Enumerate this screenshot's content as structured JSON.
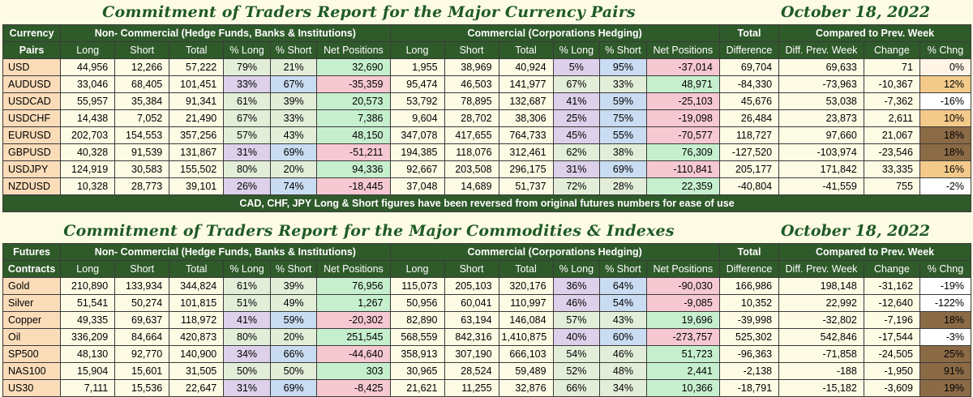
{
  "currency": {
    "title": "Commitment of Traders Report for the Major Currency Pairs",
    "date": "October 18, 2022",
    "headers": {
      "label_top": "Currency",
      "label_bottom": "Pairs",
      "noncommercial": "Non- Commercial (Hedge Funds, Banks & Institutions)",
      "commercial": "Commercial (Corporations Hedging)",
      "total": "Total",
      "total_sub": "Difference",
      "compared": "Compared to Prev. Week",
      "cols": [
        "Long",
        "Short",
        "Total",
        "% Long",
        "% Short",
        "Net Positions",
        "Long",
        "Short",
        "Total",
        "% Long",
        "% Short",
        "Net Positions",
        "Diff. Prev. Week",
        "Change",
        "% Chng"
      ]
    },
    "rows": [
      {
        "pair": "USD",
        "nc_long": "44,956",
        "nc_short": "12,266",
        "nc_total": "57,222",
        "nc_pl": "79%",
        "nc_ps": "21%",
        "nc_net": "32,690",
        "c_long": "1,955",
        "c_short": "38,969",
        "c_total": "40,924",
        "c_pl": "5%",
        "c_ps": "95%",
        "c_net": "-37,014",
        "total_diff": "69,704",
        "diff_prev": "69,633",
        "change": "71",
        "pct": "0%"
      },
      {
        "pair": "AUDUSD",
        "nc_long": "33,046",
        "nc_short": "68,405",
        "nc_total": "101,451",
        "nc_pl": "33%",
        "nc_ps": "67%",
        "nc_net": "-35,359",
        "c_long": "95,474",
        "c_short": "46,503",
        "c_total": "141,977",
        "c_pl": "67%",
        "c_ps": "33%",
        "c_net": "48,971",
        "total_diff": "-84,330",
        "diff_prev": "-73,963",
        "change": "-10,367",
        "pct": "12%"
      },
      {
        "pair": "USDCAD",
        "nc_long": "55,957",
        "nc_short": "35,384",
        "nc_total": "91,341",
        "nc_pl": "61%",
        "nc_ps": "39%",
        "nc_net": "20,573",
        "c_long": "53,792",
        "c_short": "78,895",
        "c_total": "132,687",
        "c_pl": "41%",
        "c_ps": "59%",
        "c_net": "-25,103",
        "total_diff": "45,676",
        "diff_prev": "53,038",
        "change": "-7,362",
        "pct": "-16%"
      },
      {
        "pair": "USDCHF",
        "nc_long": "14,438",
        "nc_short": "7,052",
        "nc_total": "21,490",
        "nc_pl": "67%",
        "nc_ps": "33%",
        "nc_net": "7,386",
        "c_long": "9,604",
        "c_short": "28,702",
        "c_total": "38,306",
        "c_pl": "25%",
        "c_ps": "75%",
        "c_net": "-19,098",
        "total_diff": "26,484",
        "diff_prev": "23,873",
        "change": "2,611",
        "pct": "10%"
      },
      {
        "pair": "EURUSD",
        "nc_long": "202,703",
        "nc_short": "154,553",
        "nc_total": "357,256",
        "nc_pl": "57%",
        "nc_ps": "43%",
        "nc_net": "48,150",
        "c_long": "347,078",
        "c_short": "417,655",
        "c_total": "764,733",
        "c_pl": "45%",
        "c_ps": "55%",
        "c_net": "-70,577",
        "total_diff": "118,727",
        "diff_prev": "97,660",
        "change": "21,067",
        "pct": "18%"
      },
      {
        "pair": "GBPUSD",
        "nc_long": "40,328",
        "nc_short": "91,539",
        "nc_total": "131,867",
        "nc_pl": "31%",
        "nc_ps": "69%",
        "nc_net": "-51,211",
        "c_long": "194,385",
        "c_short": "118,076",
        "c_total": "312,461",
        "c_pl": "62%",
        "c_ps": "38%",
        "c_net": "76,309",
        "total_diff": "-127,520",
        "diff_prev": "-103,974",
        "change": "-23,546",
        "pct": "18%"
      },
      {
        "pair": "USDJPY",
        "nc_long": "124,919",
        "nc_short": "30,583",
        "nc_total": "155,502",
        "nc_pl": "80%",
        "nc_ps": "20%",
        "nc_net": "94,336",
        "c_long": "92,667",
        "c_short": "203,508",
        "c_total": "296,175",
        "c_pl": "31%",
        "c_ps": "69%",
        "c_net": "-110,841",
        "total_diff": "205,177",
        "diff_prev": "171,842",
        "change": "33,335",
        "pct": "16%"
      },
      {
        "pair": "NZDUSD",
        "nc_long": "10,328",
        "nc_short": "28,773",
        "nc_total": "39,101",
        "nc_pl": "26%",
        "nc_ps": "74%",
        "nc_net": "-18,445",
        "c_long": "37,048",
        "c_short": "14,689",
        "c_total": "51,737",
        "c_pl": "72%",
        "c_ps": "28%",
        "c_net": "22,359",
        "total_diff": "-40,804",
        "diff_prev": "-41,559",
        "change": "755",
        "pct": "-2%"
      }
    ],
    "note": "CAD, CHF, JPY Long & Short figures have been reversed from original futures numbers for ease of use"
  },
  "futures": {
    "title": "Commitment of Traders Report for the Major Commodities & Indexes",
    "date": "October 18, 2022",
    "headers": {
      "label_top": "Futures",
      "label_bottom": "Contracts",
      "noncommercial": "Non- Commercial (Hedge Funds, Banks & Institutions)",
      "commercial": "Commercial (Corporations Hedging)",
      "total": "Total",
      "total_sub": "Difference",
      "compared": "Compared to Prev. Week",
      "cols": [
        "Long",
        "Short",
        "Total",
        "% Long",
        "% Short",
        "Net Positions",
        "Long",
        "Short",
        "Total",
        "% Long",
        "% Short",
        "Net Positions",
        "Diff. Prev. Week",
        "Change",
        "% Chng"
      ]
    },
    "rows": [
      {
        "pair": "Gold",
        "nc_long": "210,890",
        "nc_short": "133,934",
        "nc_total": "344,824",
        "nc_pl": "61%",
        "nc_ps": "39%",
        "nc_net": "76,956",
        "c_long": "115,073",
        "c_short": "205,103",
        "c_total": "320,176",
        "c_pl": "36%",
        "c_ps": "64%",
        "c_net": "-90,030",
        "total_diff": "166,986",
        "diff_prev": "198,148",
        "change": "-31,162",
        "pct": "-19%"
      },
      {
        "pair": "Silver",
        "nc_long": "51,541",
        "nc_short": "50,274",
        "nc_total": "101,815",
        "nc_pl": "51%",
        "nc_ps": "49%",
        "nc_net": "1,267",
        "c_long": "50,956",
        "c_short": "60,041",
        "c_total": "110,997",
        "c_pl": "46%",
        "c_ps": "54%",
        "c_net": "-9,085",
        "total_diff": "10,352",
        "diff_prev": "22,992",
        "change": "-12,640",
        "pct": "-122%"
      },
      {
        "pair": "Copper",
        "nc_long": "49,335",
        "nc_short": "69,637",
        "nc_total": "118,972",
        "nc_pl": "41%",
        "nc_ps": "59%",
        "nc_net": "-20,302",
        "c_long": "82,890",
        "c_short": "63,194",
        "c_total": "146,084",
        "c_pl": "57%",
        "c_ps": "43%",
        "c_net": "19,696",
        "total_diff": "-39,998",
        "diff_prev": "-32,802",
        "change": "-7,196",
        "pct": "18%"
      },
      {
        "pair": "Oil",
        "nc_long": "336,209",
        "nc_short": "84,664",
        "nc_total": "420,873",
        "nc_pl": "80%",
        "nc_ps": "20%",
        "nc_net": "251,545",
        "c_long": "568,559",
        "c_short": "842,316",
        "c_total": "1,410,875",
        "c_pl": "40%",
        "c_ps": "60%",
        "c_net": "-273,757",
        "total_diff": "525,302",
        "diff_prev": "542,846",
        "change": "-17,544",
        "pct": "-3%"
      },
      {
        "pair": "SP500",
        "nc_long": "48,130",
        "nc_short": "92,770",
        "nc_total": "140,900",
        "nc_pl": "34%",
        "nc_ps": "66%",
        "nc_net": "-44,640",
        "c_long": "358,913",
        "c_short": "307,190",
        "c_total": "666,103",
        "c_pl": "54%",
        "c_ps": "46%",
        "c_net": "51,723",
        "total_diff": "-96,363",
        "diff_prev": "-71,858",
        "change": "-24,505",
        "pct": "25%"
      },
      {
        "pair": "NAS100",
        "nc_long": "15,904",
        "nc_short": "15,601",
        "nc_total": "31,505",
        "nc_pl": "50%",
        "nc_ps": "50%",
        "nc_net": "303",
        "c_long": "30,965",
        "c_short": "28,524",
        "c_total": "59,489",
        "c_pl": "52%",
        "c_ps": "48%",
        "c_net": "2,441",
        "total_diff": "-2,138",
        "diff_prev": "-188",
        "change": "-1,950",
        "pct": "91%"
      },
      {
        "pair": "US30",
        "nc_long": "7,111",
        "nc_short": "15,536",
        "nc_total": "22,647",
        "nc_pl": "31%",
        "nc_ps": "69%",
        "nc_net": "-8,425",
        "c_long": "21,621",
        "c_short": "11,255",
        "c_total": "32,876",
        "c_pl": "66%",
        "c_ps": "34%",
        "c_net": "10,366",
        "total_diff": "-18,791",
        "diff_prev": "-15,182",
        "change": "-3,609",
        "pct": "19%"
      }
    ]
  },
  "colors": {
    "header_green": "#2f5a2a",
    "title_green": "#1e5a26",
    "pair_peach": "#fadcb9",
    "net_positive": "#c6efce",
    "net_negative": "#f6c8d2",
    "pct_long_purple": "#dcd0ea",
    "pct_short_blue": "#c9dcf1",
    "background": "#fdfbe4"
  }
}
